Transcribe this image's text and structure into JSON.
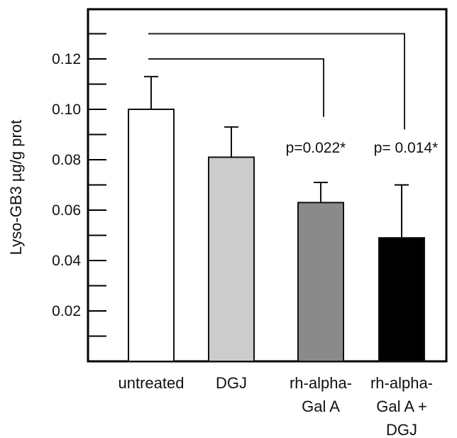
{
  "chart_data": {
    "type": "bar",
    "title": "",
    "xlabel": "",
    "ylabel": "Lyso-GB3 µg/g prot",
    "ylim": [
      0,
      0.14
    ],
    "yticks": [
      0.02,
      0.04,
      0.06,
      0.08,
      0.1,
      0.12
    ],
    "ytick_labels": [
      "0.02",
      "0.04",
      "0.06",
      "0.08",
      "0.10",
      "0.12"
    ],
    "minor_tick_step": 0.01,
    "grid": false,
    "categories": [
      [
        "untreated"
      ],
      [
        "DGJ"
      ],
      [
        "rh-alpha-",
        "Gal A"
      ],
      [
        "rh-alpha-",
        "Gal A +",
        "DGJ"
      ]
    ],
    "values": [
      0.1,
      0.081,
      0.063,
      0.049
    ],
    "error_upper": [
      0.113,
      0.093,
      0.071,
      0.07
    ],
    "bar_colors": [
      "#ffffff",
      "#cccccc",
      "#8a8a8a",
      "#000000"
    ],
    "significance": [
      {
        "from": 0,
        "to": 2,
        "label": "p=0.022*"
      },
      {
        "from": 0,
        "to": 3,
        "label": "p= 0.014*"
      }
    ]
  }
}
